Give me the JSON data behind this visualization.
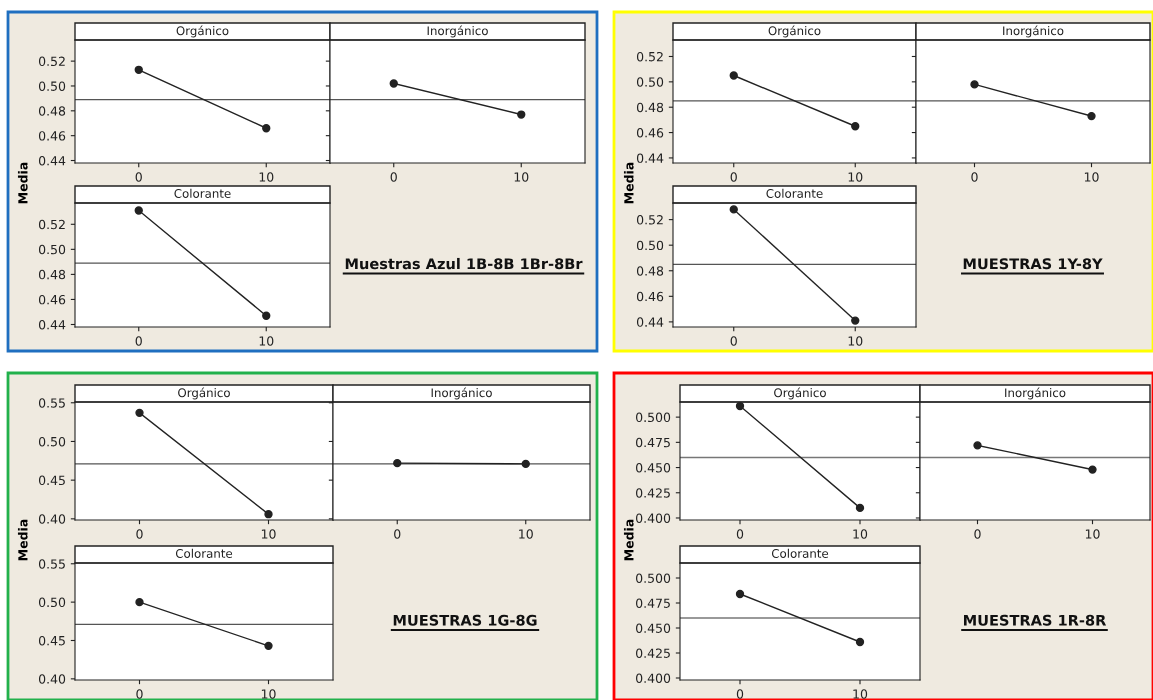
{
  "chart_data": [
    {
      "type": "line",
      "title": "Orgánico",
      "ylabel": "Media",
      "categories": [
        "0",
        "10"
      ],
      "series": [
        {
          "color": "#222222",
          "values": [
            0.513,
            0.466
          ]
        }
      ],
      "marker": "circle",
      "ylim": [
        0.438,
        0.537
      ],
      "yticks": [
        0.44,
        0.46,
        0.48,
        {
          "value": 0.5,
          "label": "0.50"
        },
        0.52
      ],
      "ref_lines": [
        {
          "axis": "y",
          "value": 0.489,
          "color": "#555555"
        }
      ]
    },
    {
      "type": "line",
      "title": "Inorgánico",
      "categories": [
        "0",
        "10"
      ],
      "series": [
        {
          "color": "#222222",
          "values": [
            0.502,
            0.477
          ]
        }
      ],
      "marker": "circle",
      "ylim": [
        0.438,
        0.537
      ],
      "yticks": [
        {
          "value": 0.44,
          "label": null
        },
        {
          "value": 0.46,
          "label": null
        },
        {
          "value": 0.48,
          "label": null
        },
        {
          "value": 0.5,
          "label": null
        },
        {
          "value": 0.52,
          "label": null
        }
      ],
      "tick_labels": "x",
      "ref_lines": [
        {
          "axis": "y",
          "value": 0.489,
          "color": "#555555"
        }
      ]
    },
    {
      "type": "line",
      "title": "Orgánico",
      "ylabel": "Media",
      "categories": [
        "0",
        "10"
      ],
      "series": [
        {
          "color": "#222222",
          "values": [
            0.505,
            0.465
          ]
        }
      ],
      "marker": "circle",
      "ylim": [
        0.436,
        0.533
      ],
      "yticks": [
        0.44,
        0.46,
        0.48,
        {
          "value": 0.5,
          "label": "0.50"
        },
        0.52
      ],
      "ref_lines": [
        {
          "axis": "y",
          "value": 0.485,
          "color": "#555555"
        }
      ]
    },
    {
      "type": "line",
      "title": "Inorgánico",
      "categories": [
        "0",
        "10"
      ],
      "series": [
        {
          "color": "#222222",
          "values": [
            0.498,
            0.473
          ]
        }
      ],
      "marker": "circle",
      "ylim": [
        0.436,
        0.533
      ],
      "yticks": [
        {
          "value": 0.44,
          "label": null
        },
        {
          "value": 0.46,
          "label": null
        },
        {
          "value": 0.48,
          "label": null
        },
        {
          "value": 0.5,
          "label": null
        },
        {
          "value": 0.52,
          "label": null
        }
      ],
      "tick_labels": "x",
      "ref_lines": [
        {
          "axis": "y",
          "value": 0.485,
          "color": "#555555"
        }
      ]
    },
    {
      "type": "line",
      "title": "Colorante",
      "annotations": [
        "Muestras Azul 1B-8B 1Br-8Br"
      ],
      "categories": [
        "0",
        "10"
      ],
      "series": [
        {
          "color": "#222222",
          "values": [
            0.531,
            0.447
          ]
        }
      ],
      "marker": "circle",
      "ylim": [
        0.438,
        0.537
      ],
      "yticks": [
        0.44,
        0.46,
        0.48,
        {
          "value": 0.5,
          "label": "0.50"
        },
        0.52
      ],
      "ref_lines": [
        {
          "axis": "y",
          "value": 0.489,
          "color": "#555555"
        }
      ]
    },
    {
      "type": "line",
      "title": "Colorante",
      "annotations": [
        "MUESTRAS 1Y-8Y"
      ],
      "categories": [
        "0",
        "10"
      ],
      "series": [
        {
          "color": "#222222",
          "values": [
            0.528,
            0.441
          ]
        }
      ],
      "marker": "circle",
      "ylim": [
        0.436,
        0.533
      ],
      "yticks": [
        0.44,
        0.46,
        0.48,
        {
          "value": 0.5,
          "label": "0.50"
        },
        0.52
      ],
      "ref_lines": [
        {
          "axis": "y",
          "value": 0.485,
          "color": "#555555"
        }
      ]
    },
    {
      "type": "line",
      "title": "Orgánico",
      "ylabel": "Media",
      "categories": [
        "0",
        "10"
      ],
      "series": [
        {
          "color": "#222222",
          "values": [
            0.537,
            0.406
          ]
        }
      ],
      "marker": "circle",
      "ylim": [
        0.3985,
        0.551
      ],
      "yticks": [
        {
          "value": 0.4,
          "label": "0.40"
        },
        0.45,
        {
          "value": 0.5,
          "label": "0.50"
        },
        0.55
      ],
      "ref_lines": [
        {
          "axis": "y",
          "value": 0.471,
          "color": "#555555"
        }
      ]
    },
    {
      "type": "line",
      "title": "Inorgánico",
      "categories": [
        "0",
        "10"
      ],
      "series": [
        {
          "color": "#222222",
          "values": [
            0.472,
            0.471
          ]
        }
      ],
      "marker": "circle",
      "ylim": [
        0.3985,
        0.551
      ],
      "yticks": [
        {
          "value": 0.4,
          "label": null
        },
        {
          "value": 0.45,
          "label": null
        },
        {
          "value": 0.5,
          "label": null
        },
        {
          "value": 0.55,
          "label": null
        }
      ],
      "tick_labels": "x",
      "ref_lines": [
        {
          "axis": "y",
          "value": 0.471,
          "color": "#555555"
        }
      ]
    },
    {
      "type": "line",
      "title": "Orgánico",
      "ylabel": "Media",
      "categories": [
        "0",
        "10"
      ],
      "series": [
        {
          "color": "#222222",
          "values": [
            0.511,
            0.41
          ]
        }
      ],
      "marker": "circle",
      "ylim": [
        0.398,
        0.515
      ],
      "yticks": [
        {
          "value": 0.4,
          "label": "0.400"
        },
        0.425,
        {
          "value": 0.45,
          "label": "0.450"
        },
        0.475,
        {
          "value": 0.5,
          "label": "0.500"
        }
      ],
      "ref_lines": [
        {
          "axis": "y",
          "value": 0.46,
          "color": "#777777"
        }
      ]
    },
    {
      "type": "line",
      "title": "Inorgánico",
      "categories": [
        "0",
        "10"
      ],
      "series": [
        {
          "color": "#222222",
          "values": [
            0.472,
            0.448
          ]
        }
      ],
      "marker": "circle",
      "ylim": [
        0.398,
        0.515
      ],
      "yticks": [
        {
          "value": 0.4,
          "label": null
        },
        {
          "value": 0.425,
          "label": null
        },
        {
          "value": 0.45,
          "label": null
        },
        {
          "value": 0.475,
          "label": null
        },
        {
          "value": 0.5,
          "label": null
        }
      ],
      "tick_labels": "x",
      "ref_lines": [
        {
          "axis": "y",
          "value": 0.46,
          "color": "#777777"
        }
      ]
    },
    {
      "type": "line",
      "title": "Colorante",
      "annotations": [
        "MUESTRAS 1G-8G"
      ],
      "categories": [
        "0",
        "10"
      ],
      "series": [
        {
          "color": "#222222",
          "values": [
            0.5,
            0.443
          ]
        }
      ],
      "marker": "circle",
      "ylim": [
        0.3985,
        0.551
      ],
      "yticks": [
        {
          "value": 0.4,
          "label": "0.40"
        },
        0.45,
        {
          "value": 0.5,
          "label": "0.50"
        },
        0.55
      ],
      "ref_lines": [
        {
          "axis": "y",
          "value": 0.471,
          "color": "#555555"
        }
      ]
    },
    {
      "type": "line",
      "title": "Colorante",
      "annotations": [
        "MUESTRAS 1R-8R"
      ],
      "categories": [
        "0",
        "10"
      ],
      "series": [
        {
          "color": "#222222",
          "values": [
            0.484,
            0.436
          ]
        }
      ],
      "marker": "circle",
      "ylim": [
        0.398,
        0.515
      ],
      "yticks": [
        {
          "value": 0.4,
          "label": "0.400"
        },
        0.425,
        {
          "value": 0.45,
          "label": "0.450"
        },
        0.475,
        {
          "value": 0.5,
          "label": "0.500"
        }
      ],
      "ref_lines": [
        {
          "axis": "y",
          "value": 0.46,
          "color": "#777777"
        }
      ]
    }
  ]
}
